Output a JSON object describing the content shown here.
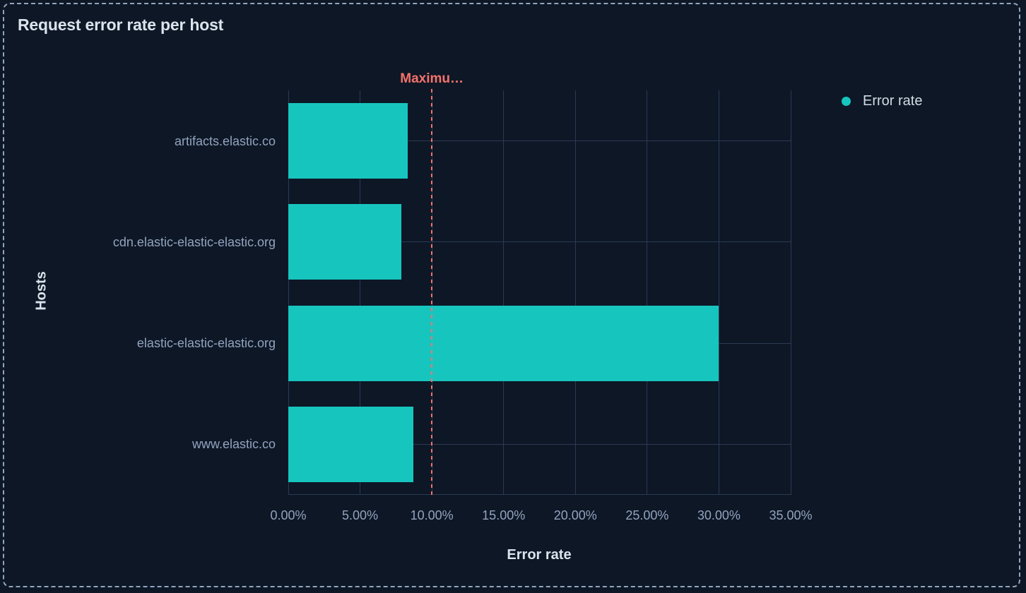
{
  "panel": {
    "title": "Request error rate per host"
  },
  "legend": {
    "items": [
      {
        "label": "Error rate",
        "color": "#17c5bf"
      }
    ]
  },
  "chart_data": {
    "type": "bar",
    "orientation": "horizontal",
    "title": "Request error rate per host",
    "xlabel": "Error rate",
    "ylabel": "Hosts",
    "categories": [
      "artifacts.elastic.co",
      "cdn.elastic-elastic-elastic.org",
      "elastic-elastic-elastic.org",
      "www.elastic.co"
    ],
    "series": [
      {
        "name": "Error rate",
        "color": "#17c5bf",
        "values": [
          8.3,
          7.9,
          30.0,
          8.7
        ]
      }
    ],
    "value_format": "percent",
    "xlim": [
      0,
      35
    ],
    "x_ticks": [
      {
        "value": 0,
        "label": "0.00%"
      },
      {
        "value": 5,
        "label": "5.00%"
      },
      {
        "value": 10,
        "label": "10.00%"
      },
      {
        "value": 15,
        "label": "15.00%"
      },
      {
        "value": 20,
        "label": "20.00%"
      },
      {
        "value": 25,
        "label": "25.00%"
      },
      {
        "value": 30,
        "label": "30.00%"
      },
      {
        "value": 35,
        "label": "35.00%"
      }
    ],
    "grid": true,
    "legend_position": "right",
    "threshold": {
      "label": "Maximu…",
      "value": 10,
      "color": "#f6726a",
      "line_style": "dashed"
    }
  },
  "colors": {
    "background": "#0d1726",
    "panel_border": "#92a5bc",
    "gridline": "#2b3a54",
    "bar": "#17c5bf",
    "threshold": "#f6726a",
    "tick_text": "#93a3be",
    "title_text": "#dce3ed"
  }
}
